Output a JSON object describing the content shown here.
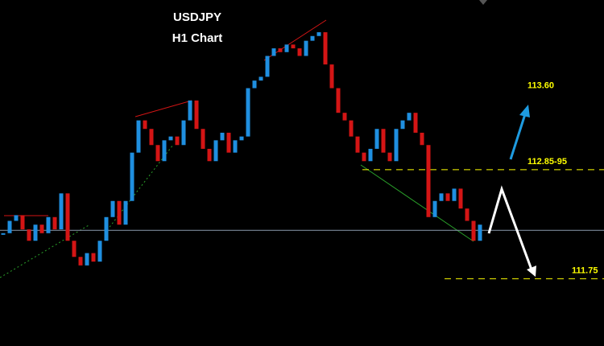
{
  "chart_data": {
    "type": "candlestick",
    "title": "USDJPY",
    "subtitle": "H1 Chart",
    "close": [
      112.23,
      112.36,
      112.42,
      112.27,
      112.15,
      112.32,
      112.23,
      112.4,
      112.27,
      112.65,
      112.15,
      111.98,
      111.89,
      112.02,
      111.93,
      112.15,
      112.4,
      112.57,
      112.32,
      112.57,
      113.08,
      113.42,
      113.33,
      113.16,
      112.99,
      113.21,
      113.25,
      113.16,
      113.42,
      113.63,
      113.33,
      113.12,
      112.99,
      113.21,
      113.29,
      113.08,
      113.21,
      113.25,
      113.76,
      113.84,
      113.88,
      114.1,
      114.18,
      114.14,
      114.22,
      114.18,
      114.1,
      114.26,
      114.31,
      114.35,
      114.01,
      113.76,
      113.5,
      113.42,
      113.25,
      113.08,
      112.99,
      113.12,
      113.33,
      113.08,
      112.99,
      113.33,
      113.42,
      113.5,
      113.29,
      113.16,
      112.4,
      112.57,
      112.65,
      112.57,
      112.7,
      112.49,
      112.36,
      112.15,
      112.32
    ],
    "up_color": "#1f8fe0",
    "down_color": "#d41515",
    "ylim": [
      111.04,
      114.69
    ],
    "reference_line": 112.26,
    "levels": [
      {
        "value": 112.9,
        "label": "112.85-95"
      },
      {
        "value": 111.75,
        "label": "111.75"
      }
    ],
    "target": {
      "value": 113.6,
      "label": "113.60"
    },
    "label_color": "#ffff00"
  }
}
